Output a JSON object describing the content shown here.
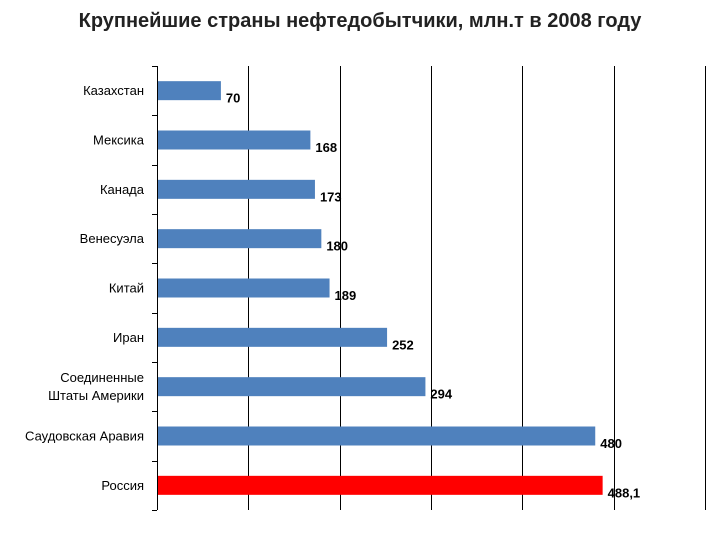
{
  "title": "Крупнейшие страны нефтедобытчики, млн.т в 2008 году",
  "chart_data": {
    "type": "bar",
    "orientation": "horizontal",
    "title": "Крупнейшие страны нефтедобытчики, млн.т в 2008 году",
    "categories": [
      "Казахстан",
      "Мексика",
      "Канада",
      "Венесуэла",
      "Китай",
      "Иран",
      "Соединенные Штаты Америки",
      "Саудовская Аравия",
      "Россия"
    ],
    "category_lines": [
      [
        "Казахстан"
      ],
      [
        "Мексика"
      ],
      [
        "Канада"
      ],
      [
        "Венесуэла"
      ],
      [
        "Китай"
      ],
      [
        "Иран"
      ],
      [
        "Соединенные",
        "Штаты Америки"
      ],
      [
        "Саудовская Аравия"
      ],
      [
        "Россия"
      ]
    ],
    "values": [
      70,
      168,
      173,
      180,
      189,
      252,
      294,
      480,
      488.1
    ],
    "data_labels": [
      "70",
      "168",
      "173",
      "180",
      "189",
      "252",
      "294",
      "480",
      "488,1"
    ],
    "xlim": [
      0,
      600
    ],
    "x_gridlines": [
      100,
      200,
      300,
      400,
      500,
      600
    ],
    "grid": true,
    "legend": "none",
    "colors": {
      "default_bar": "#4f81bd",
      "highlight_bar": "#ff0000",
      "highlight_category": "Россия",
      "grid": "#000000",
      "text": "#000000"
    }
  }
}
